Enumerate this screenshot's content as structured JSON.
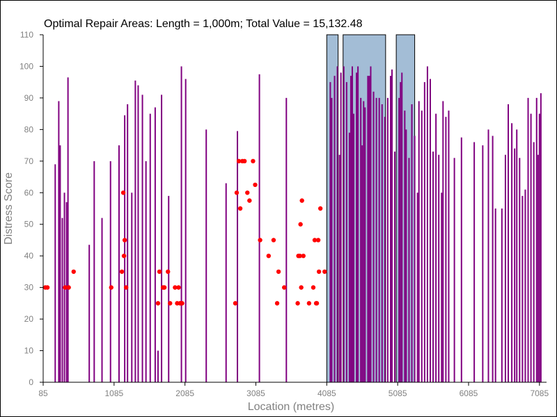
{
  "chart_data": {
    "type": "bar",
    "title": "Optimal Repair Areas: Length = 1,000m; Total Value = 15,132.48",
    "xlabel": "Location (metres)",
    "ylabel": "Distress Score",
    "xlim": [
      85,
      7185
    ],
    "ylim": [
      0,
      110
    ],
    "x_ticks": [
      85,
      1085,
      2085,
      3085,
      4085,
      5085,
      6085,
      7085
    ],
    "y_ticks": [
      0,
      10,
      20,
      30,
      40,
      50,
      60,
      70,
      80,
      90,
      100,
      110
    ],
    "colors": {
      "bars": "#800080",
      "points": "#ff0000",
      "repair_fill": "#a3bdd6",
      "repair_stroke": "#000000"
    },
    "repair_areas": [
      {
        "x_start": 4085,
        "x_end": 4245
      },
      {
        "x_start": 4315,
        "x_end": 4915
      },
      {
        "x_start": 5065,
        "x_end": 5325
      }
    ],
    "bars": {
      "x": [
        255,
        305,
        325,
        355,
        385,
        415,
        435,
        735,
        805,
        915,
        1035,
        1155,
        1235,
        1275,
        1335,
        1385,
        1425,
        1485,
        1535,
        1595,
        1665,
        1705,
        1755,
        1855,
        2035,
        2095,
        2385,
        2665,
        2825,
        3135,
        3515,
        4135,
        4155,
        4195,
        4235,
        4265,
        4285,
        4325,
        4365,
        4405,
        4425,
        4445,
        4465,
        4505,
        4525,
        4565,
        4585,
        4605,
        4625,
        4665,
        4685,
        4705,
        4745,
        4785,
        4825,
        4865,
        4905,
        4945,
        4985,
        5005,
        5045,
        5105,
        5125,
        5145,
        5185,
        5205,
        5245,
        5285,
        5325,
        5365,
        5385,
        5425,
        5465,
        5505,
        5545,
        5585,
        5625,
        5665,
        5705,
        5725,
        5765,
        5805,
        5885,
        5985,
        6165,
        6285,
        6365,
        6425,
        6465,
        6555,
        6605,
        6645,
        6695,
        6735,
        6765,
        6805,
        6845,
        6885,
        6925,
        6965,
        7005,
        7045,
        7065,
        7085,
        7105
      ],
      "values": [
        69,
        89,
        75,
        52,
        60,
        57,
        96.5,
        43.5,
        70,
        52,
        70,
        75,
        84.5,
        88,
        60,
        95.5,
        94,
        91,
        70,
        85,
        87,
        10,
        91,
        59,
        100,
        96,
        80,
        63,
        79.5,
        97.5,
        90,
        95,
        90,
        97,
        100,
        72,
        98,
        100,
        95,
        79,
        97,
        100,
        85,
        98,
        100,
        90,
        75,
        89,
        87,
        97,
        97,
        100,
        92,
        90,
        90,
        88,
        84,
        90,
        97,
        99,
        73,
        90,
        95,
        98,
        86,
        80,
        71,
        88,
        78,
        60,
        89,
        86,
        95,
        100,
        96,
        73,
        85,
        72,
        60,
        89,
        84,
        86,
        71,
        77.5,
        76,
        75,
        80,
        78,
        55,
        55,
        72,
        88,
        82,
        74,
        80,
        71,
        59,
        61,
        90,
        85,
        76,
        90,
        72,
        85,
        91.5
      ]
    },
    "points": {
      "x": [
        115,
        145,
        395,
        445,
        515,
        1045,
        1195,
        1215,
        1225,
        1235,
        1255,
        1705,
        1725,
        1775,
        1785,
        1795,
        1845,
        1875,
        1945,
        1975,
        1995,
        2015,
        2025,
        2045,
        2795,
        2815,
        2845,
        2865,
        2895,
        2925,
        2965,
        2995,
        3045,
        3075,
        3145,
        3265,
        3335,
        3385,
        3405,
        3485,
        3675,
        3685,
        3705,
        3715,
        3725,
        3735,
        3755,
        3835,
        3895,
        3915,
        3935,
        3945,
        3965,
        3975,
        3995,
        4055
      ],
      "values": [
        30,
        30,
        30,
        30,
        35,
        30,
        35,
        60,
        40,
        45,
        30,
        25,
        35,
        30,
        30,
        30,
        35,
        25,
        30,
        25,
        30,
        25,
        25,
        25,
        25,
        60,
        70,
        55,
        70,
        70,
        60,
        57.5,
        70,
        62.5,
        45,
        40,
        45,
        25,
        35,
        30,
        25,
        40,
        40,
        50,
        30,
        57.5,
        40,
        25,
        30,
        45,
        25,
        25,
        45,
        35,
        55,
        35
      ]
    }
  }
}
